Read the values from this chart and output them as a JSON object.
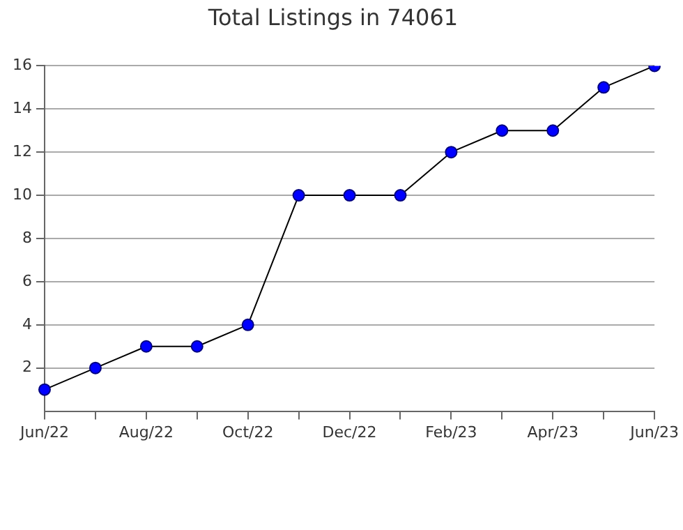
{
  "chart_data": {
    "type": "line",
    "title": "Total Listings in 74061",
    "categories": [
      "Jun/22",
      null,
      "Aug/22",
      null,
      "Oct/22",
      null,
      "Dec/22",
      null,
      "Feb/23",
      null,
      "Apr/23",
      null,
      "Jun/23"
    ],
    "series": [
      {
        "color": "#0000ff",
        "values": [
          1,
          2,
          3,
          3,
          4,
          10,
          10,
          10,
          12,
          13,
          13,
          15,
          16
        ]
      }
    ],
    "ylim": [
      0,
      16
    ],
    "yticks": [
      2,
      4,
      6,
      8,
      10,
      12,
      14,
      16
    ],
    "grid": "y",
    "legend": false,
    "marker": "circle",
    "line_style": "solid"
  }
}
